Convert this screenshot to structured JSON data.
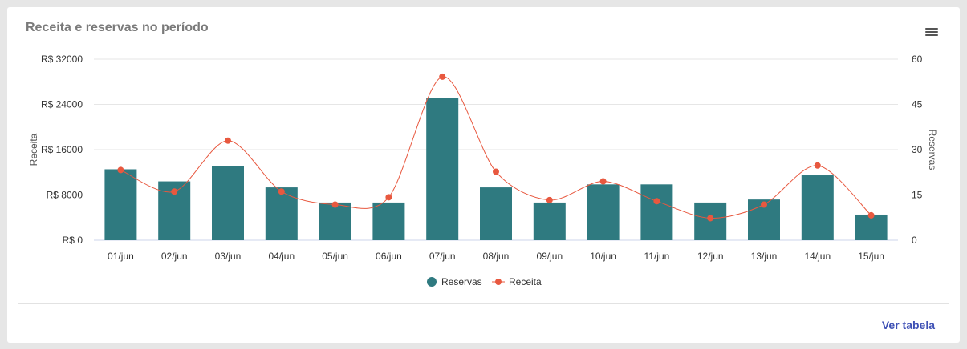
{
  "card": {
    "title": "Receita e reservas no período",
    "menu_icon": "hamburger-menu-icon",
    "footer_link": "Ver tabela"
  },
  "colors": {
    "bars": "#2f7a80",
    "line": "#e8583f",
    "grid": "#e6e6e6",
    "link": "#3f51b5"
  },
  "chart_data": {
    "type": "bar",
    "categories": [
      "01/jun",
      "02/jun",
      "03/jun",
      "04/jun",
      "05/jun",
      "06/jun",
      "07/jun",
      "08/jun",
      "09/jun",
      "10/jun",
      "11/jun",
      "12/jun",
      "13/jun",
      "14/jun",
      "15/jun"
    ],
    "series": [
      {
        "name": "Reservas",
        "type": "bar",
        "axis": "right",
        "values": [
          23.5,
          19.5,
          24.5,
          17.5,
          12.5,
          12.5,
          47,
          17.5,
          12.5,
          18.5,
          18.5,
          12.5,
          13.5,
          21.5,
          8.5
        ]
      },
      {
        "name": "Receita",
        "type": "line",
        "axis": "left",
        "values": [
          12400,
          8600,
          17600,
          8600,
          6300,
          7600,
          28900,
          12100,
          7100,
          10400,
          6900,
          3900,
          6300,
          13200,
          4400
        ]
      }
    ],
    "y_left": {
      "label": "Receita",
      "ylim": [
        0,
        32000
      ],
      "ticks": [
        0,
        8000,
        16000,
        24000,
        32000
      ],
      "tick_labels": [
        "R$ 0",
        "R$ 8000",
        "R$ 16000",
        "R$ 24000",
        "R$ 32000"
      ]
    },
    "y_right": {
      "label": "Reservas",
      "ylim": [
        0,
        60
      ],
      "ticks": [
        0,
        15,
        30,
        45,
        60
      ],
      "tick_labels": [
        "0",
        "15",
        "30",
        "45",
        "60"
      ]
    },
    "grid": true,
    "legend_position": "bottom-center",
    "legend": [
      {
        "label": "Reservas",
        "marker": "circle"
      },
      {
        "label": "Receita",
        "marker": "line-point"
      }
    ]
  }
}
